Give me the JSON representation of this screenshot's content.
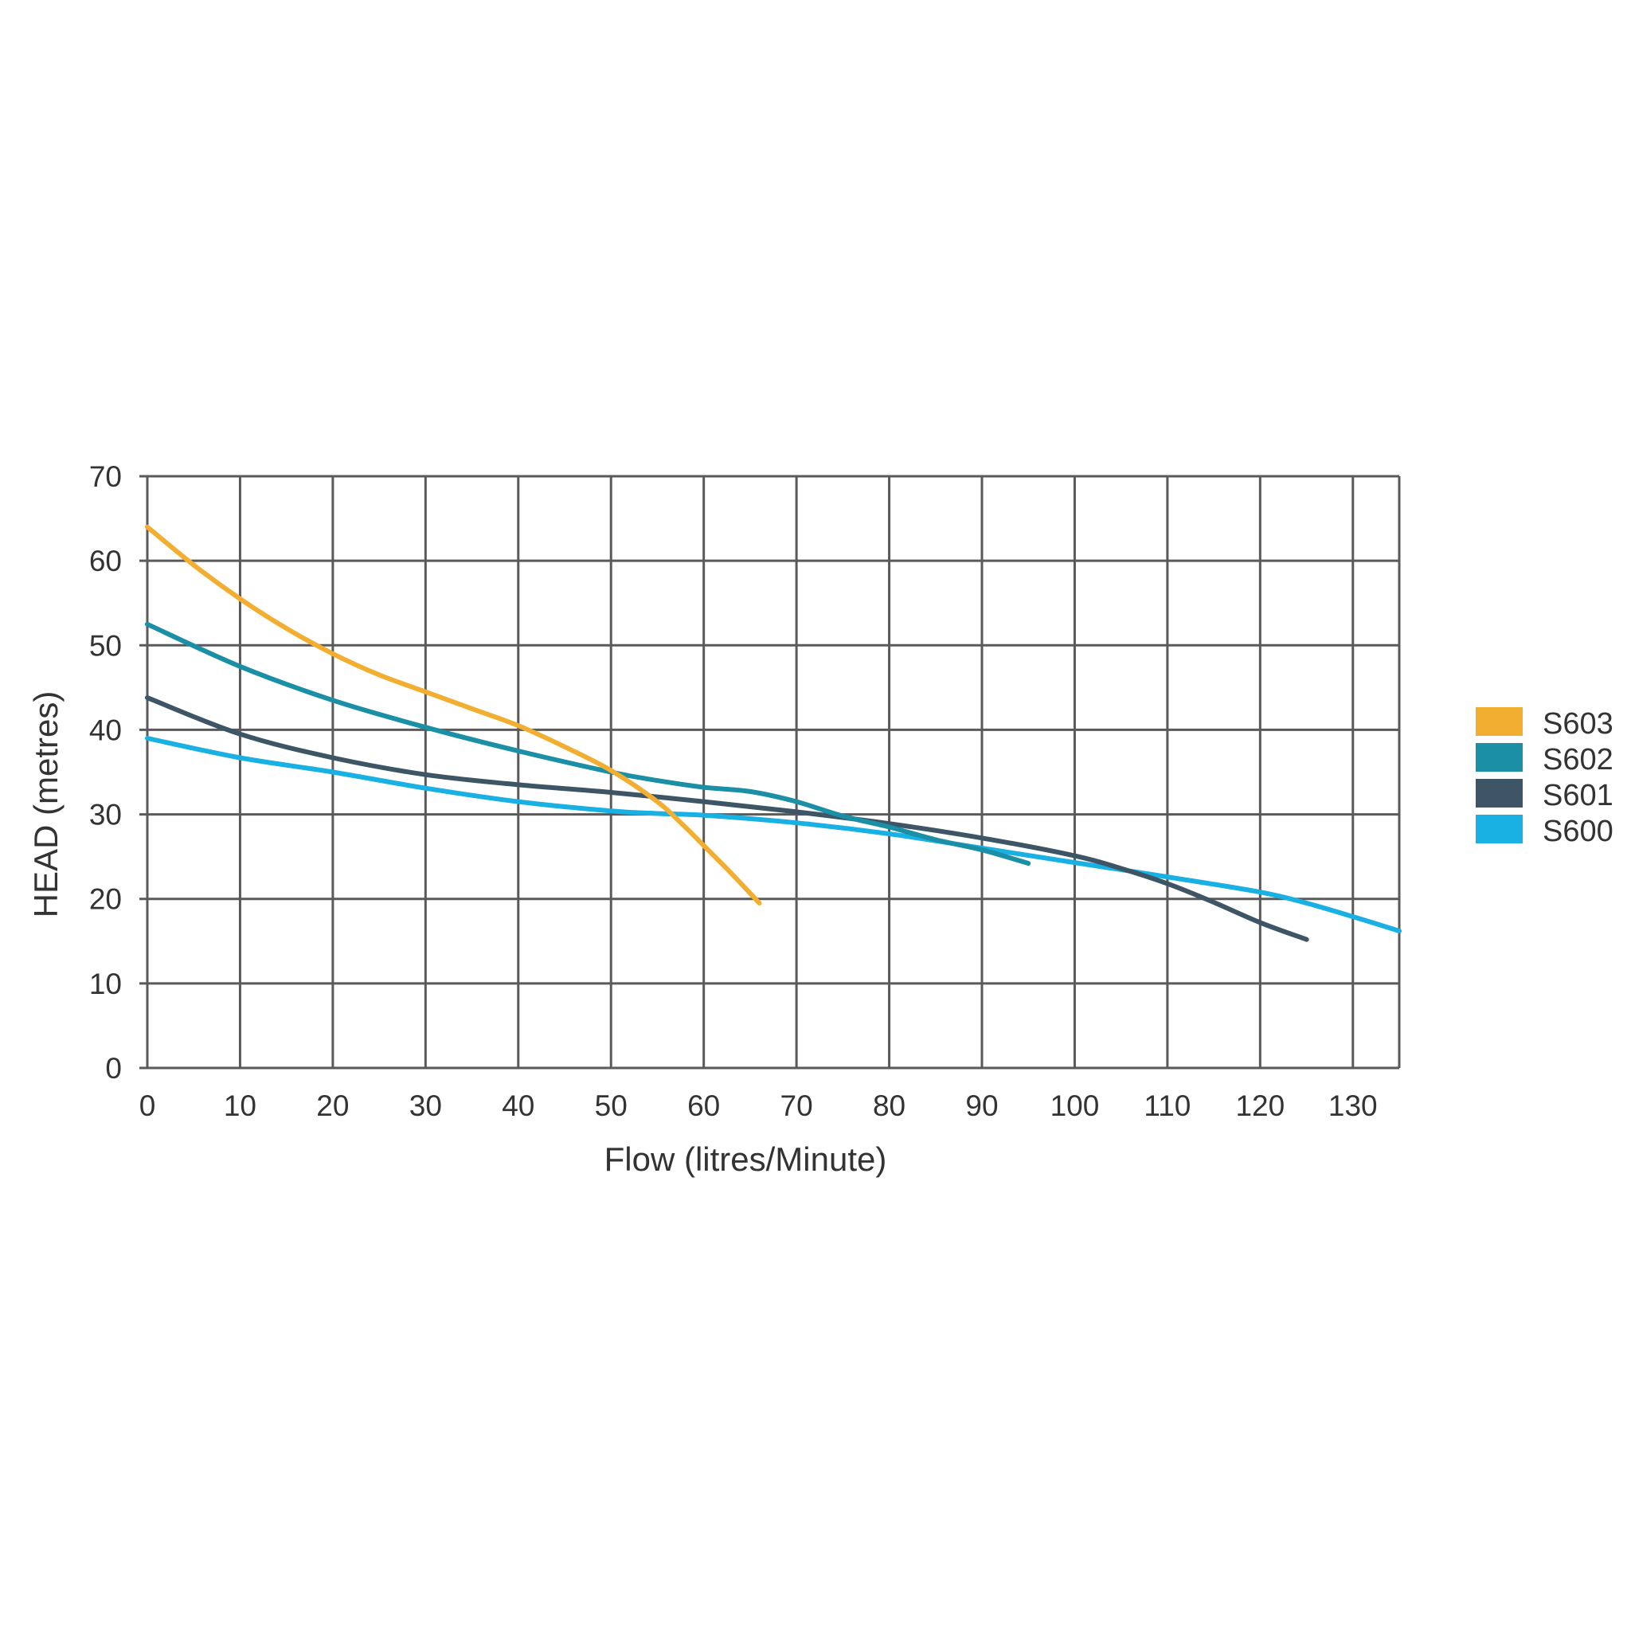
{
  "chart_data": {
    "type": "line",
    "xlabel": "Flow (litres/Minute)",
    "ylabel": "HEAD (metres)",
    "xlim": [
      0,
      135
    ],
    "ylim": [
      0,
      70
    ],
    "xticks": [
      0,
      10,
      20,
      30,
      40,
      50,
      60,
      70,
      80,
      90,
      100,
      110,
      120,
      130
    ],
    "yticks": [
      0,
      10,
      20,
      30,
      40,
      50,
      60,
      70
    ],
    "grid": true,
    "legend_position": "right",
    "series": [
      {
        "name": "S603",
        "color": "#F2AE30",
        "points": [
          [
            0,
            64
          ],
          [
            5,
            59.5
          ],
          [
            10,
            55.5
          ],
          [
            15,
            52
          ],
          [
            20,
            49
          ],
          [
            25,
            46.5
          ],
          [
            30,
            44.5
          ],
          [
            35,
            42.5
          ],
          [
            40,
            40.5
          ],
          [
            45,
            38
          ],
          [
            50,
            35.2
          ],
          [
            55,
            31.5
          ],
          [
            58,
            28.5
          ],
          [
            60,
            26.3
          ],
          [
            63,
            23
          ],
          [
            66,
            19.5
          ]
        ]
      },
      {
        "name": "S602",
        "color": "#1A8FA5",
        "points": [
          [
            0,
            52.5
          ],
          [
            10,
            47.5
          ],
          [
            20,
            43.5
          ],
          [
            30,
            40.3
          ],
          [
            40,
            37.5
          ],
          [
            50,
            35
          ],
          [
            55,
            34
          ],
          [
            60,
            33.2
          ],
          [
            65,
            32.7
          ],
          [
            70,
            31.5
          ],
          [
            75,
            29.8
          ],
          [
            80,
            28.5
          ],
          [
            85,
            27
          ],
          [
            90,
            25.8
          ],
          [
            95,
            24.2
          ]
        ]
      },
      {
        "name": "S601",
        "color": "#3E5566",
        "points": [
          [
            0,
            43.8
          ],
          [
            10,
            39.5
          ],
          [
            20,
            36.7
          ],
          [
            30,
            34.7
          ],
          [
            40,
            33.5
          ],
          [
            50,
            32.6
          ],
          [
            60,
            31.5
          ],
          [
            70,
            30.3
          ],
          [
            80,
            28.9
          ],
          [
            90,
            27.2
          ],
          [
            100,
            25.1
          ],
          [
            105,
            23.6
          ],
          [
            110,
            21.8
          ],
          [
            115,
            19.6
          ],
          [
            120,
            17.2
          ],
          [
            125,
            15.2
          ]
        ]
      },
      {
        "name": "S600",
        "color": "#19B0E3",
        "points": [
          [
            0,
            39
          ],
          [
            10,
            36.7
          ],
          [
            20,
            35
          ],
          [
            30,
            33.1
          ],
          [
            40,
            31.5
          ],
          [
            50,
            30.4
          ],
          [
            55,
            30.1
          ],
          [
            60,
            29.9
          ],
          [
            70,
            29
          ],
          [
            80,
            27.7
          ],
          [
            90,
            26
          ],
          [
            100,
            24.3
          ],
          [
            110,
            22.6
          ],
          [
            120,
            20.8
          ],
          [
            125,
            19.5
          ],
          [
            130,
            17.9
          ],
          [
            135,
            16.2
          ]
        ]
      }
    ]
  }
}
